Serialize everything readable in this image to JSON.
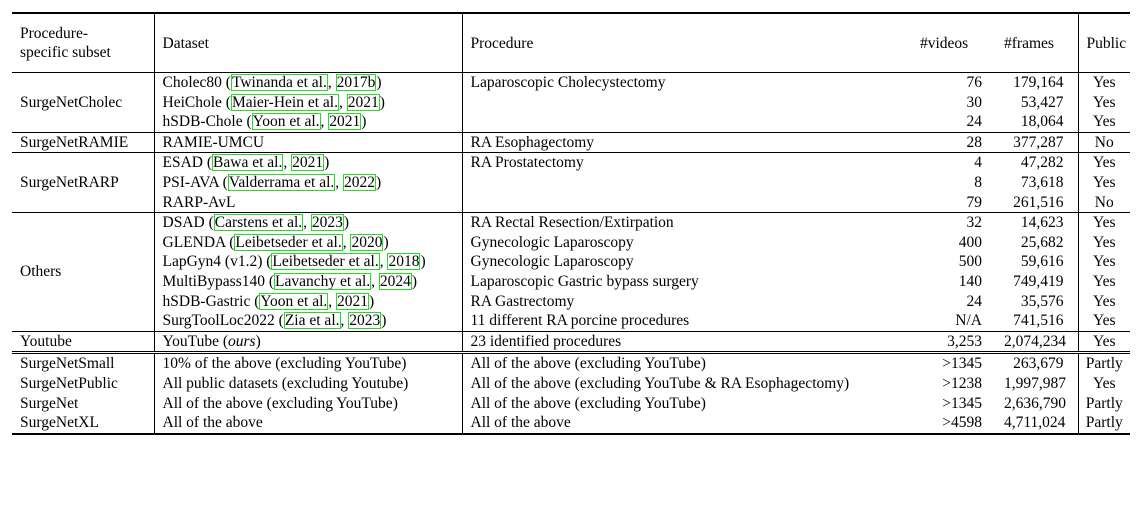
{
  "header": {
    "subset_line1": "Procedure-",
    "subset_line2": "specific subset",
    "dataset": "Dataset",
    "procedure": "Procedure",
    "videos": "#videos",
    "frames": "#frames",
    "public": "Public"
  },
  "groups": [
    {
      "subset": "SurgeNetCholec",
      "rows": [
        {
          "name": "Cholec80",
          "cite_author": "Twinanda et al.",
          "cite_year": "2017b",
          "procedure": "Laparoscopic Cholecystectomy",
          "videos": "76",
          "frames": "179,164",
          "public": "Yes"
        },
        {
          "name": "HeiChole",
          "cite_author": "Maier-Hein et al.",
          "cite_year": "2021",
          "procedure": "",
          "videos": "30",
          "frames": "53,427",
          "public": "Yes"
        },
        {
          "name": "hSDB-Chole",
          "cite_author": "Yoon et al.",
          "cite_year": "2021",
          "procedure": "",
          "videos": "24",
          "frames": "18,064",
          "public": "Yes"
        }
      ]
    },
    {
      "subset": "SurgeNetRAMIE",
      "rows": [
        {
          "name": "RAMIE-UMCU",
          "procedure": "RA Esophagectomy",
          "videos": "28",
          "frames": "377,287",
          "public": "No"
        }
      ]
    },
    {
      "subset": "SurgeNetRARP",
      "rows": [
        {
          "name": "ESAD",
          "cite_author": "Bawa et al.",
          "cite_year": "2021",
          "procedure": "RA Prostatectomy",
          "videos": "4",
          "frames": "47,282",
          "public": "Yes"
        },
        {
          "name": "PSI-AVA",
          "cite_author": "Valderrama et al.",
          "cite_year": "2022",
          "procedure": "",
          "videos": "8",
          "frames": "73,618",
          "public": "Yes"
        },
        {
          "name": "RARP-AvL",
          "procedure": "",
          "videos": "79",
          "frames": "261,516",
          "public": "No"
        }
      ]
    },
    {
      "subset": "Others",
      "rows": [
        {
          "name": "DSAD",
          "cite_author": "Carstens et al.",
          "cite_year": "2023",
          "procedure": "RA Rectal Resection/Extirpation",
          "videos": "32",
          "frames": "14,623",
          "public": "Yes"
        },
        {
          "name": "GLENDA",
          "cite_author": "Leibetseder et al.",
          "cite_year": "2020",
          "procedure": "Gynecologic Laparoscopy",
          "videos": "400",
          "frames": "25,682",
          "public": "Yes"
        },
        {
          "name": "LapGyn4 (v1.2)",
          "cite_author": "Leibetseder et al.",
          "cite_year": "2018",
          "procedure": "Gynecologic Laparoscopy",
          "videos": "500",
          "frames": "59,616",
          "public": "Yes"
        },
        {
          "name": "MultiBypass140",
          "cite_author": "Lavanchy et al.",
          "cite_year": "2024",
          "procedure": "Laparoscopic Gastric bypass surgery",
          "videos": "140",
          "frames": "749,419",
          "public": "Yes"
        },
        {
          "name": "hSDB-Gastric",
          "cite_author": "Yoon et al.",
          "cite_year": "2021",
          "procedure": "RA Gastrectomy",
          "videos": "24",
          "frames": "35,576",
          "public": "Yes"
        },
        {
          "name": "SurgToolLoc2022",
          "cite_author": "Zia et al.",
          "cite_year": "2023",
          "procedure": "11 different RA porcine procedures",
          "videos": "N/A",
          "frames": "741,516",
          "public": "Yes"
        }
      ]
    },
    {
      "subset": "Youtube",
      "rows": [
        {
          "name": "YouTube",
          "suffix": "ours",
          "procedure": "23 identified procedures",
          "videos": "3,253",
          "frames": "2,074,234",
          "public": "Yes"
        }
      ]
    }
  ],
  "combined": [
    {
      "subset": "SurgeNetSmall",
      "dataset": "10% of the above (excluding YouTube)",
      "procedure": "All of the above (excluding YouTube)",
      "videos": ">1345",
      "frames": "263,679",
      "public": "Partly"
    },
    {
      "subset": "SurgeNetPublic",
      "dataset": "All public datasets (excluding Youtube)",
      "procedure": "All of the above (excluding YouTube & RA Esophagectomy)",
      "videos": ">1238",
      "frames": "1,997,987",
      "public": "Yes"
    },
    {
      "subset": "SurgeNet",
      "dataset": "All of the above (excluding YouTube)",
      "procedure": "All of the above (excluding YouTube)",
      "videos": ">1345",
      "frames": "2,636,790",
      "public": "Partly"
    },
    {
      "subset": "SurgeNetXL",
      "dataset": "All of the above",
      "procedure": "All of the above",
      "videos": ">4598",
      "frames": "4,711,024",
      "public": "Partly"
    }
  ]
}
